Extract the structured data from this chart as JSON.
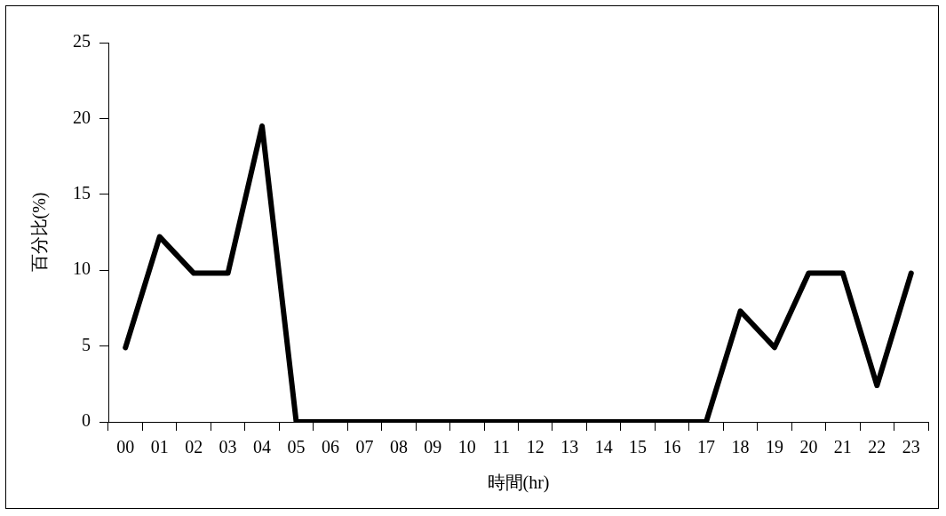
{
  "chart_data": {
    "type": "line",
    "xlabel": "時間(hr)",
    "ylabel": "百分比(%)",
    "categories": [
      "00",
      "01",
      "02",
      "03",
      "04",
      "05",
      "06",
      "07",
      "08",
      "09",
      "10",
      "11",
      "12",
      "13",
      "14",
      "15",
      "16",
      "17",
      "18",
      "19",
      "20",
      "21",
      "22",
      "23"
    ],
    "series": [
      {
        "color": "#000000",
        "values": [
          4.9,
          12.2,
          9.8,
          9.8,
          19.5,
          0,
          0,
          0,
          0,
          0,
          0,
          0,
          0,
          0,
          0,
          0,
          0,
          0,
          7.3,
          4.9,
          9.8,
          9.8,
          2.4,
          9.8
        ]
      }
    ],
    "ylim": [
      0,
      25
    ],
    "yticks": [
      0,
      5,
      10,
      15,
      20,
      25
    ],
    "marker": "none",
    "line_style": "solid"
  }
}
